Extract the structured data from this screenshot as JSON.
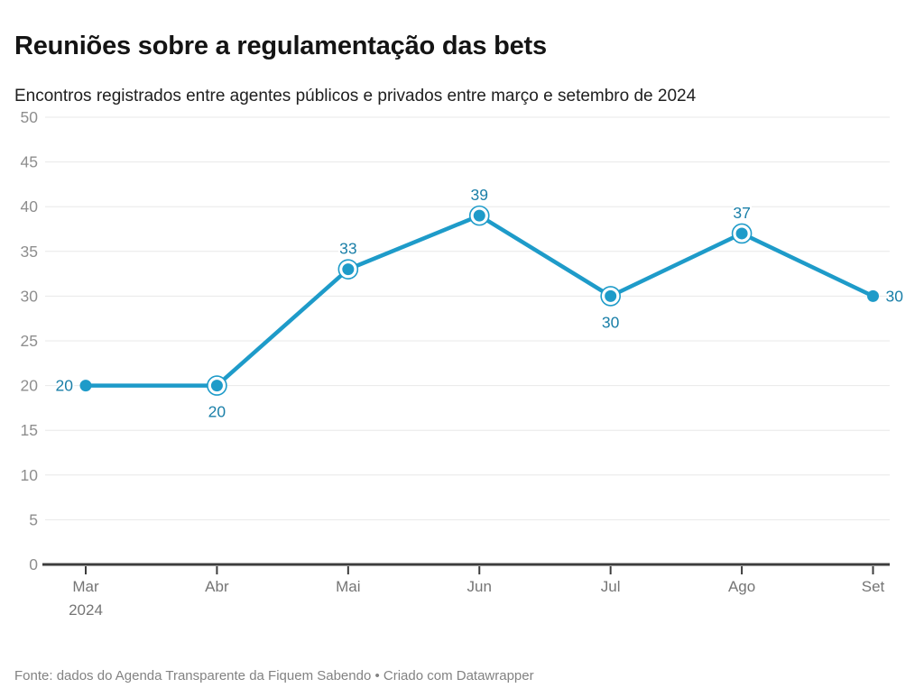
{
  "header": {
    "title": "Reuniões sobre a regulamentação das bets",
    "subtitle": "Encontros registrados entre agentes públicos e privados entre março e setembro de 2024"
  },
  "footer": {
    "source": "Fonte: dados do Agenda Transparente da Fiquem Sabendo • Criado com Datawrapper"
  },
  "chart_data": {
    "type": "line",
    "title": "Reuniões sobre a regulamentação das bets",
    "subtitle": "Encontros registrados entre agentes públicos e privados entre março e setembro de 2024",
    "categories": [
      "Mar",
      "Abr",
      "Mai",
      "Jun",
      "Jul",
      "Ago",
      "Set"
    ],
    "x_secondary_label": "2024",
    "values": [
      20,
      20,
      33,
      39,
      30,
      37,
      30
    ],
    "value_label_positions": [
      "left",
      "below",
      "above",
      "above",
      "below",
      "above",
      "right"
    ],
    "point_has_halo_ring": [
      false,
      true,
      true,
      true,
      true,
      true,
      false
    ],
    "ylim": [
      0,
      50
    ],
    "ytick_step": 5,
    "grid": true,
    "legend": "none",
    "colors": {
      "line": "#1E9BC9",
      "value_label": "#1A7FA8",
      "grid_line": "#E8E8E8",
      "y_axis_text": "#8E8E8E",
      "x_axis_text": "#757575",
      "baseline": "#3D3D3D"
    }
  }
}
